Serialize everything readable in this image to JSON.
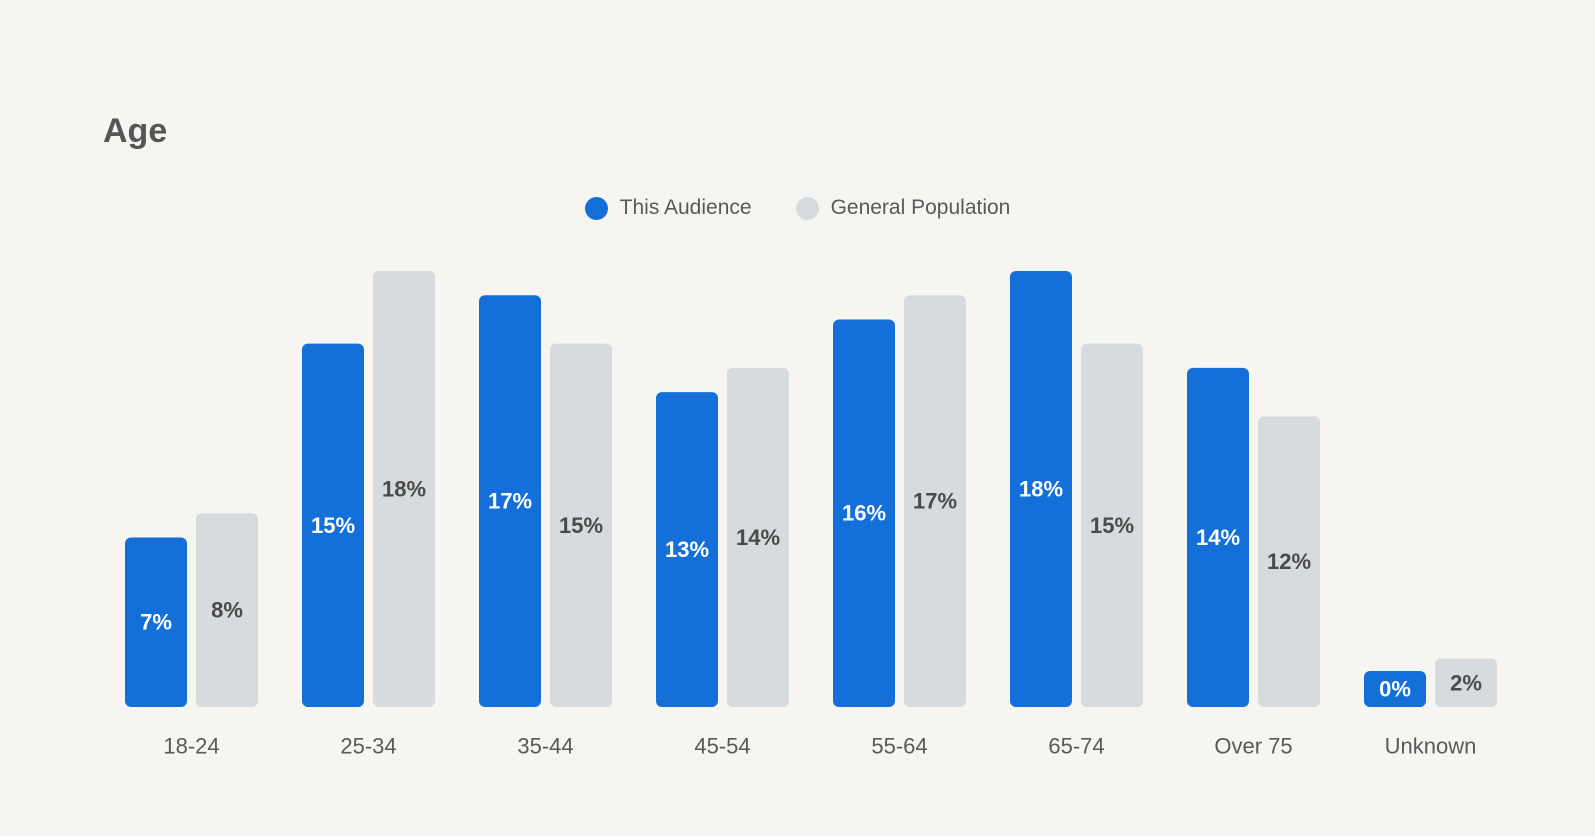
{
  "chart_data": {
    "type": "bar",
    "title": "Age",
    "categories": [
      "18-24",
      "25-34",
      "35-44",
      "45-54",
      "55-64",
      "65-74",
      "Over 75",
      "Unknown"
    ],
    "series": [
      {
        "name": "This Audience",
        "values": [
          7,
          15,
          17,
          13,
          16,
          18,
          14,
          0
        ],
        "color": "#146fd9"
      },
      {
        "name": "General Population",
        "values": [
          8,
          18,
          15,
          14,
          17,
          15,
          12,
          2
        ],
        "color": "#d7dbdd"
      }
    ],
    "value_suffix": "%",
    "ylim": [
      0,
      18
    ],
    "grid": false,
    "legend_position": "top-center"
  }
}
